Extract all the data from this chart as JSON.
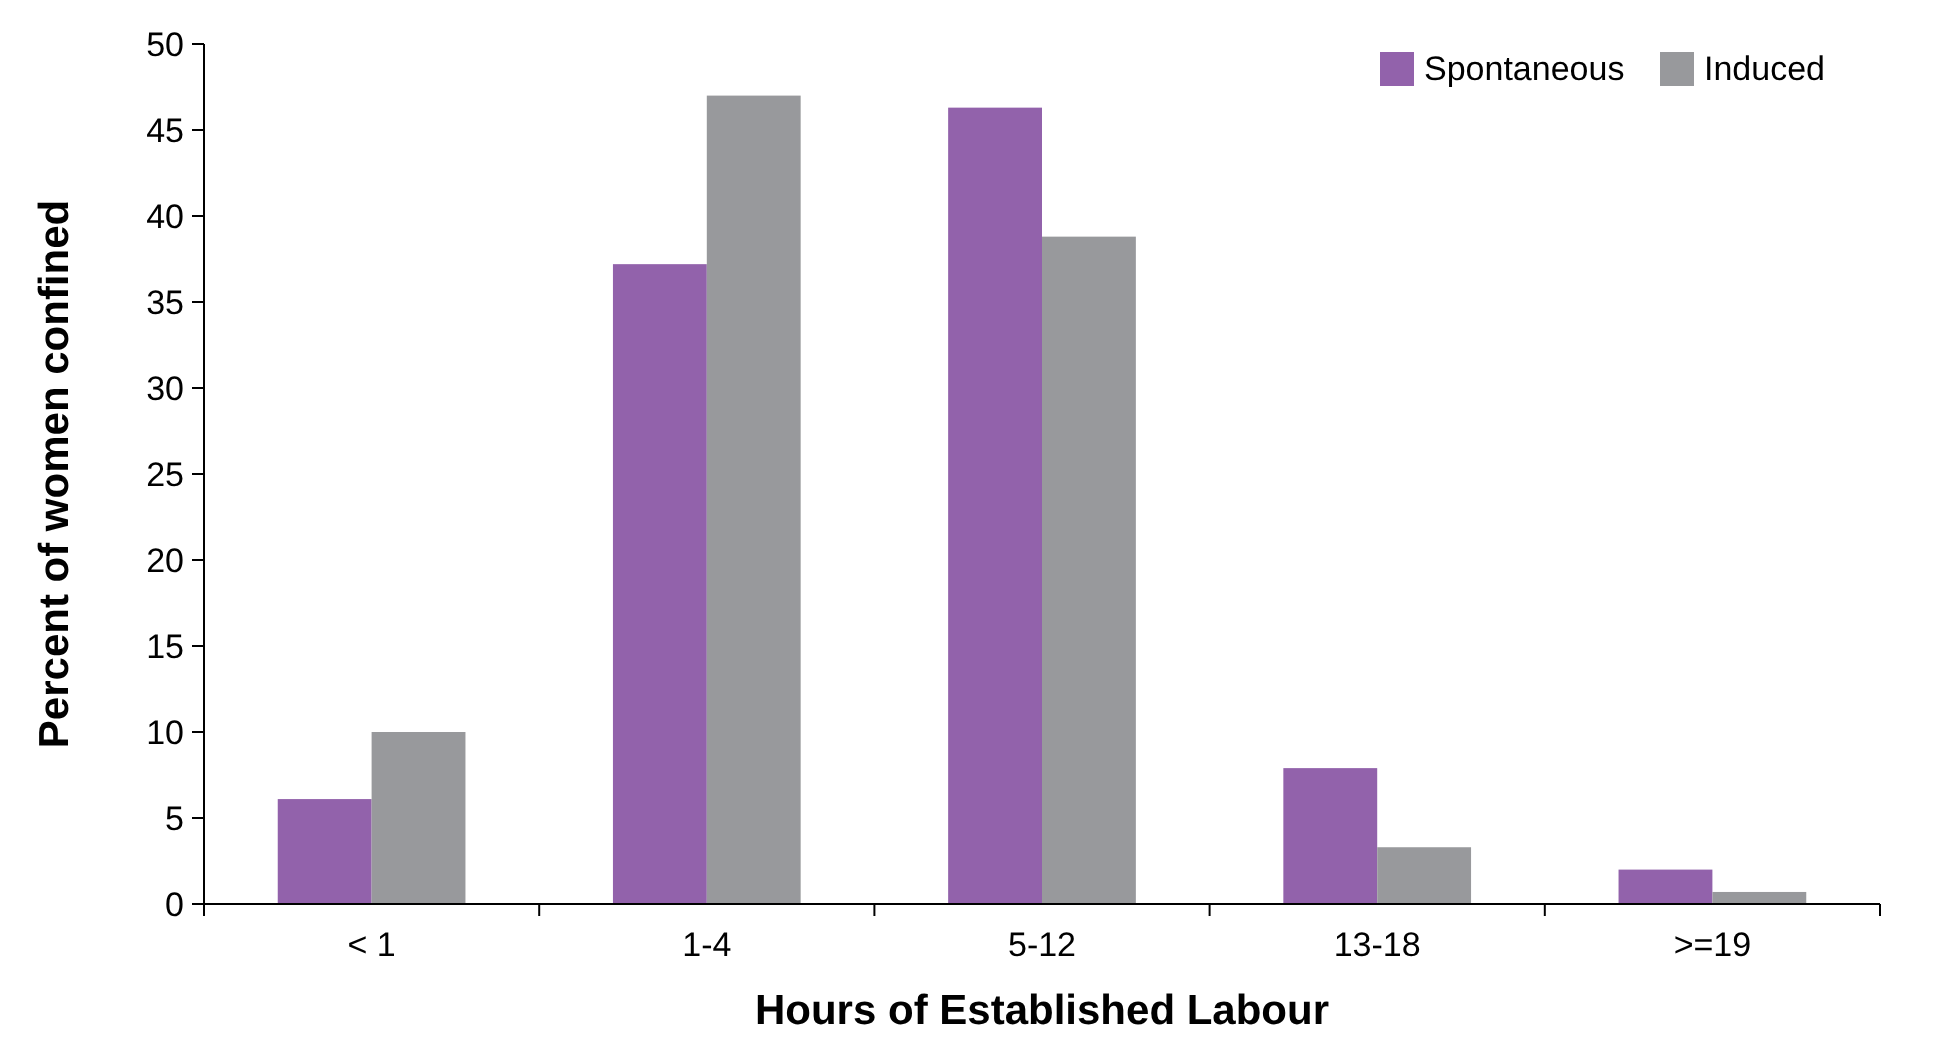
{
  "chart_data": {
    "type": "bar",
    "xlabel": "Hours of Established Labour",
    "ylabel": "Percent of women confined",
    "categories": [
      "< 1",
      "1-4",
      "5-12",
      "13-18",
      ">=19"
    ],
    "series": [
      {
        "name": "Spontaneous",
        "color": "#9262ab",
        "values": [
          6.1,
          37.2,
          46.3,
          7.9,
          2.0
        ]
      },
      {
        "name": "Induced",
        "color": "#98999c",
        "values": [
          10.0,
          47.0,
          38.8,
          3.3,
          0.7
        ]
      }
    ],
    "ylim": [
      0,
      50
    ],
    "yticks": [
      0,
      5,
      10,
      15,
      20,
      25,
      30,
      35,
      40,
      45,
      50
    ],
    "grid": false,
    "legend": "top right"
  }
}
